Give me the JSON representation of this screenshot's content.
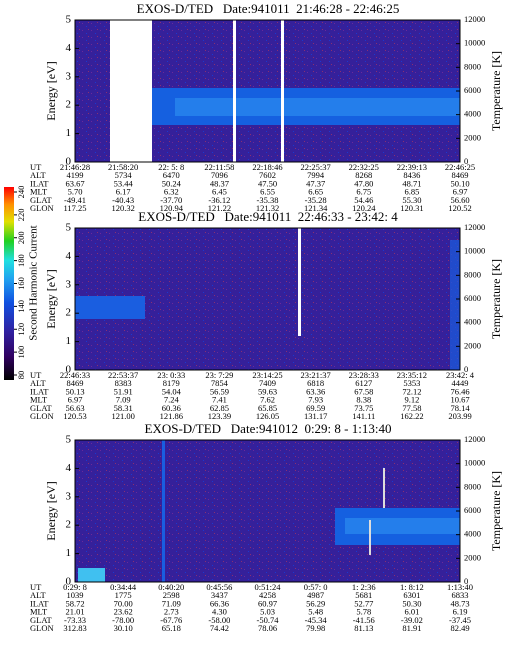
{
  "colorbar": {
    "label": "Second Harmonic Current",
    "ticks": [
      80,
      100,
      120,
      140,
      160,
      180,
      200,
      220,
      240
    ]
  },
  "panels": [
    {
      "title": "EXOS-D/TED   Date:941011  21:46:28 - 22:46:25",
      "ylabel": "Energy [eV]",
      "y2label": "Temperature [K]",
      "ylim": [
        0,
        5
      ],
      "yticks": [
        0,
        1,
        2,
        3,
        4,
        5
      ],
      "y2lim": [
        0,
        12000
      ],
      "y2ticks": [
        0,
        2000,
        4000,
        6000,
        8000,
        10000,
        12000
      ],
      "table": {
        "row_labels": [
          "UT",
          "ALT",
          "ILAT",
          "MLT",
          "GLAT",
          "GLON"
        ],
        "rows": [
          [
            "21:46:28",
            "21:58:20",
            "22: 5: 8",
            "22:11:58",
            "22:18:46",
            "22:25:37",
            "22:32:25",
            "22:39:13",
            "22:46:25"
          ],
          [
            "4199",
            "5734",
            "6470",
            "7096",
            "7602",
            "7994",
            "8268",
            "8436",
            "8469"
          ],
          [
            "63.67",
            "53.44",
            "50.24",
            "48.37",
            "47.50",
            "47.37",
            "47.80",
            "48.71",
            "50.10"
          ],
          [
            "5.70",
            "6.17",
            "6.32",
            "6.45",
            "6.55",
            "6.65",
            "6.75",
            "6.85",
            "6.97"
          ],
          [
            "-49.41",
            "-40.43",
            "-37.70",
            "-36.12",
            "-35.38",
            "-35.28",
            "54.46",
            "55.30",
            "56.60"
          ],
          [
            "117.25",
            "120.32",
            "120.94",
            "121.22",
            "121.32",
            "121.34",
            "120.24",
            "120.31",
            "120.52"
          ]
        ]
      }
    },
    {
      "title": "EXOS-D/TED   Date:941011  22:46:33 - 23:42: 4",
      "ylabel": "Energy [eV]",
      "y2label": "Temperature [K]",
      "ylim": [
        0,
        5
      ],
      "yticks": [
        0,
        1,
        2,
        3,
        4,
        5
      ],
      "y2lim": [
        0,
        12000
      ],
      "y2ticks": [
        0,
        2000,
        4000,
        6000,
        8000,
        10000,
        12000
      ],
      "table": {
        "row_labels": [
          "UT",
          "ALT",
          "ILAT",
          "MLT",
          "GLAT",
          "GLON"
        ],
        "rows": [
          [
            "22:46:33",
            "22:53:37",
            "23: 0:33",
            "23: 7:29",
            "23:14:25",
            "23:21:37",
            "23:28:33",
            "23:35:12",
            "23:42: 4"
          ],
          [
            "8469",
            "8383",
            "8179",
            "7854",
            "7409",
            "6818",
            "6127",
            "5353",
            "4449"
          ],
          [
            "50.13",
            "51.91",
            "54.04",
            "56.59",
            "59.63",
            "63.36",
            "67.58",
            "72.12",
            "76.46"
          ],
          [
            "6.97",
            "7.09",
            "7.24",
            "7.41",
            "7.62",
            "7.93",
            "8.38",
            "9.12",
            "10.67"
          ],
          [
            "56.63",
            "58.31",
            "60.36",
            "62.85",
            "65.85",
            "69.59",
            "73.75",
            "77.58",
            "78.14"
          ],
          [
            "120.53",
            "121.00",
            "121.86",
            "123.39",
            "126.05",
            "131.17",
            "141.11",
            "162.22",
            "203.99"
          ]
        ]
      }
    },
    {
      "title": "EXOS-D/TED   Date:941012  0:29: 8 - 1:13:40",
      "ylabel": "Energy [eV]",
      "y2label": "Temperature [K]",
      "ylim": [
        0,
        5
      ],
      "yticks": [
        0,
        1,
        2,
        3,
        4,
        5
      ],
      "y2lim": [
        0,
        12000
      ],
      "y2ticks": [
        0,
        2000,
        4000,
        6000,
        8000,
        10000,
        12000
      ],
      "table": {
        "row_labels": [
          "UT",
          "ALT",
          "ILAT",
          "MLT",
          "GLAT",
          "GLON"
        ],
        "rows": [
          [
            "0:29: 8",
            "0:34:44",
            "0:40:20",
            "0:45:56",
            "0:51:24",
            "0:57: 0",
            "1: 2:36",
            "1: 8:12",
            "1:13:40"
          ],
          [
            "1039",
            "1775",
            "2598",
            "3437",
            "4258",
            "4987",
            "5681",
            "6301",
            "6833"
          ],
          [
            "58.72",
            "70.00",
            "71.09",
            "66.36",
            "60.97",
            "56.29",
            "52.77",
            "50.30",
            "48.73"
          ],
          [
            "21.01",
            "23.62",
            "2.73",
            "4.30",
            "5.03",
            "5.48",
            "5.78",
            "6.01",
            "6.19"
          ],
          [
            "-73.33",
            "-78.00",
            "-67.76",
            "-58.00",
            "-50.74",
            "-45.34",
            "-41.56",
            "-39.02",
            "-37.45"
          ],
          [
            "312.83",
            "30.10",
            "65.18",
            "74.42",
            "78.06",
            "79.98",
            "81.13",
            "81.91",
            "82.49"
          ]
        ]
      }
    }
  ]
}
